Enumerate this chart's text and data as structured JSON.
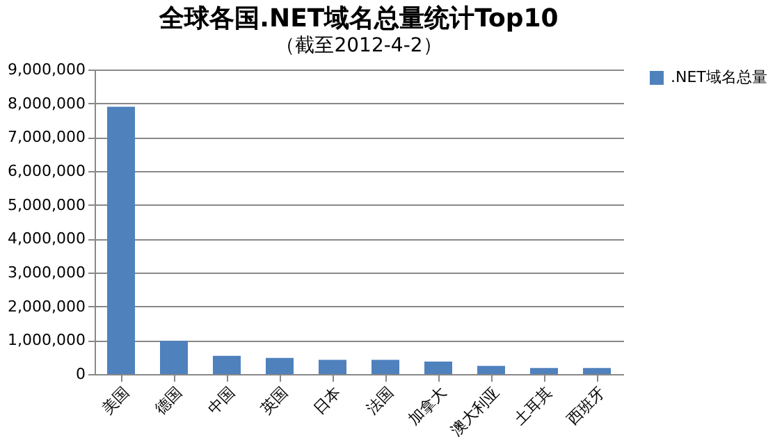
{
  "chart_data": {
    "type": "bar",
    "title": "全球各国.NET域名总量统计Top10",
    "subtitle": "（截至2012-4-2）",
    "categories": [
      "美国",
      "德国",
      "中国",
      "英国",
      "日本",
      "法国",
      "加拿大",
      "澳大利亚",
      "土耳其",
      "西班牙"
    ],
    "series": [
      {
        "name": ".NET域名总量",
        "color": "#4f81bd",
        "values": [
          7900000,
          980000,
          540000,
          480000,
          420000,
          420000,
          370000,
          240000,
          180000,
          180000
        ]
      }
    ],
    "ylim": [
      0,
      9000000
    ],
    "yticks": [
      0,
      {
        "value": 1000000,
        "label": "1,000,000"
      },
      {
        "value": 2000000,
        "label": "2,000,000"
      },
      {
        "value": 3000000,
        "label": "3,000,000"
      },
      {
        "value": 4000000,
        "label": "4,000,000"
      },
      {
        "value": 5000000,
        "label": "5,000,000"
      },
      {
        "value": 6000000,
        "label": "6,000,000"
      },
      {
        "value": 7000000,
        "label": "7,000,000"
      },
      {
        "value": 8000000,
        "label": "8,000,000"
      },
      {
        "value": 9000000,
        "label": "9,000,000"
      }
    ],
    "grid": "y",
    "legend": "right"
  }
}
